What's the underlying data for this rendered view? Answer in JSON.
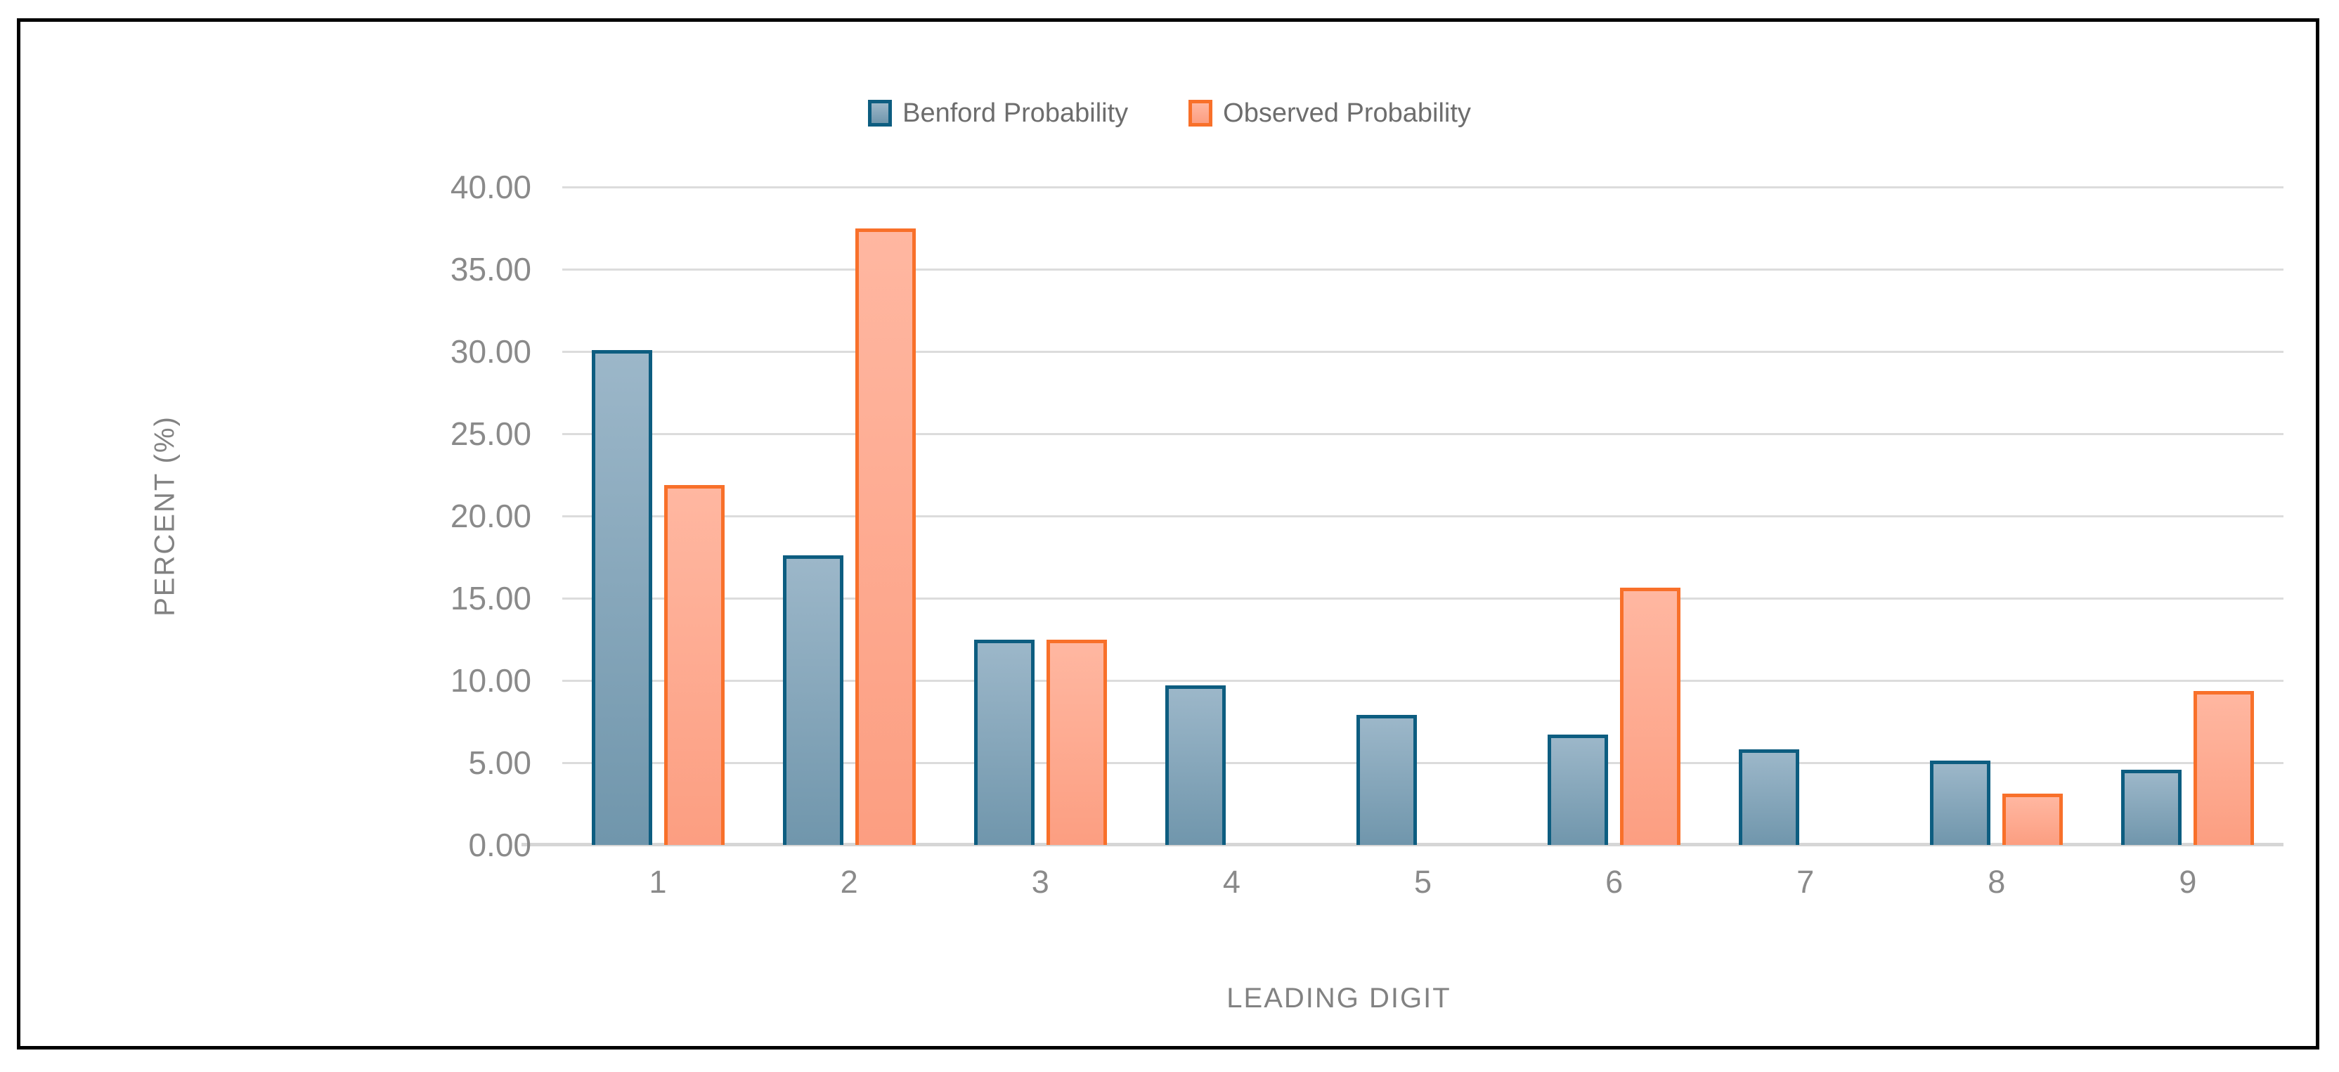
{
  "chart_data": {
    "type": "bar",
    "title": "",
    "categories": [
      "1",
      "2",
      "3",
      "4",
      "5",
      "6",
      "7",
      "8",
      "9"
    ],
    "series": [
      {
        "name": "Benford Probability",
        "values": [
          30.1,
          17.61,
          12.49,
          9.69,
          7.92,
          6.69,
          5.8,
          5.12,
          4.58
        ],
        "fill_top": "#9cb7c9",
        "fill_bottom": "#7096ac",
        "border": "#0d5d80"
      },
      {
        "name": "Observed Probability",
        "values": [
          21.88,
          37.5,
          12.5,
          0.0,
          0.0,
          15.63,
          0.0,
          3.13,
          9.38
        ],
        "fill_top": "#ffb7a1",
        "fill_bottom": "#fc9e81",
        "border": "#f8702a"
      }
    ],
    "xlabel": "LEADING DIGIT",
    "ylabel": "PERCENT (%)",
    "ylim": [
      0,
      40
    ],
    "ytick_step": 5,
    "ytick_labels": [
      "40.00",
      "35.00",
      "30.00",
      "25.00",
      "20.00",
      "15.00",
      "10.00",
      "5.00",
      "0.00"
    ],
    "grid": "horizontal",
    "legend_position": "top-center",
    "colors": {
      "gridline": "#dcdcdc",
      "axis_line": "#d6d6d6",
      "tick_text": "#8a8a8a",
      "axis_title_text": "#828282",
      "legend_text": "#6d6d6d",
      "frame_border": "#000000",
      "background": "#ffffff"
    }
  }
}
